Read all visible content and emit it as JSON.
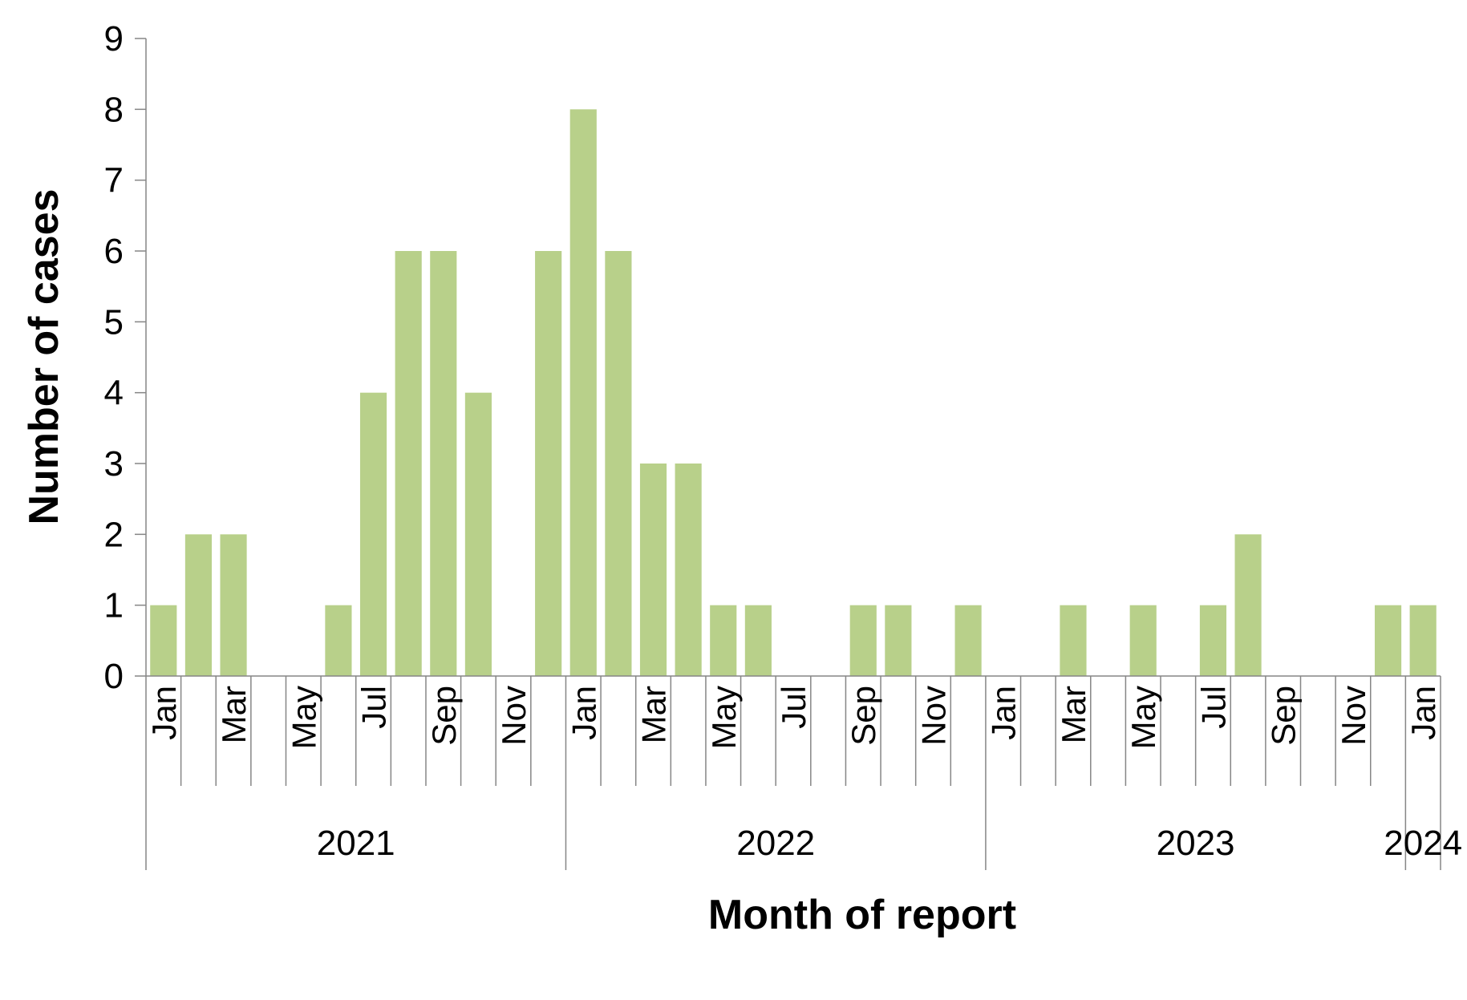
{
  "chart_data": {
    "type": "bar",
    "title": "",
    "xlabel": "Month of report",
    "ylabel": "Number of cases",
    "ylim": [
      0,
      9
    ],
    "yticks": [
      "0",
      "1",
      "2",
      "3",
      "4",
      "5",
      "6",
      "7",
      "8",
      "9"
    ],
    "bar_color": "#b8d08a",
    "categories": [
      "Jan 2021",
      "Feb 2021",
      "Mar 2021",
      "Apr 2021",
      "May 2021",
      "Jun 2021",
      "Jul 2021",
      "Aug 2021",
      "Sep 2021",
      "Oct 2021",
      "Nov 2021",
      "Dec 2021",
      "Jan 2022",
      "Feb 2022",
      "Mar 2022",
      "Apr 2022",
      "May 2022",
      "Jun 2022",
      "Jul 2022",
      "Aug 2022",
      "Sep 2022",
      "Oct 2022",
      "Nov 2022",
      "Dec 2022",
      "Jan 2023",
      "Feb 2023",
      "Mar 2023",
      "Apr 2023",
      "May 2023",
      "Jun 2023",
      "Jul 2023",
      "Aug 2023",
      "Sep 2023",
      "Oct 2023",
      "Nov 2023",
      "Dec 2023",
      "Jan 2024"
    ],
    "month_tick_labels": [
      "Jan",
      "",
      "Mar",
      "",
      "May",
      "",
      "Jul",
      "",
      "Sep",
      "",
      "Nov",
      "",
      "Jan",
      "",
      "Mar",
      "",
      "May",
      "",
      "Jul",
      "",
      "Sep",
      "",
      "Nov",
      "",
      "Jan",
      "",
      "Mar",
      "",
      "May",
      "",
      "Jul",
      "",
      "Sep",
      "",
      "Nov",
      "",
      "Jan"
    ],
    "years": [
      {
        "label": "2021",
        "months": 12
      },
      {
        "label": "2022",
        "months": 12
      },
      {
        "label": "2023",
        "months": 12
      },
      {
        "label": "2024",
        "months": 1
      }
    ],
    "values": [
      1,
      2,
      2,
      0,
      0,
      1,
      4,
      6,
      6,
      4,
      0,
      6,
      8,
      6,
      3,
      3,
      1,
      1,
      0,
      0,
      1,
      1,
      0,
      1,
      0,
      0,
      1,
      0,
      1,
      0,
      1,
      2,
      0,
      0,
      0,
      1,
      1
    ],
    "grid": false,
    "legend": "none"
  }
}
